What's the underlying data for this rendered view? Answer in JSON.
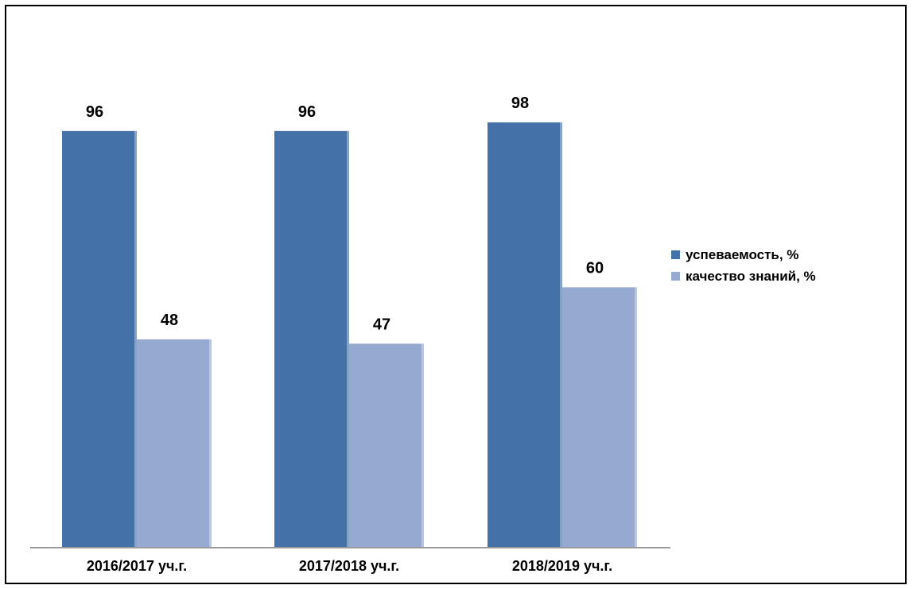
{
  "chart_data": {
    "type": "bar",
    "categories": [
      "2016/2017 уч.г.",
      "2017/2018 уч.г.",
      "2018/2019 уч.г."
    ],
    "series": [
      {
        "name": "успеваемость, %",
        "values": [
          96,
          96,
          98
        ],
        "color": "#4472a8"
      },
      {
        "name": "качество знаний, %",
        "values": [
          48,
          47,
          60
        ],
        "color": "#95a9d1"
      }
    ],
    "data_labels": [
      [
        "96",
        "96",
        "98"
      ],
      [
        "48",
        "47",
        "60"
      ]
    ],
    "title": "",
    "xlabel": "",
    "ylabel": "",
    "ylim": [
      0,
      100
    ],
    "grid": false,
    "legend_position": "right"
  }
}
